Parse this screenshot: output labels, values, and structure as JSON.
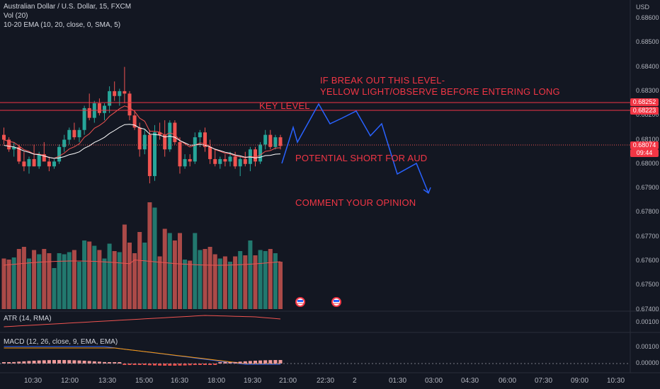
{
  "legend": {
    "symbol": "Australian Dollar / U.S. Dollar, 15, FXCM",
    "volume": "Vol (20)",
    "ema": "10-20 EMA (10, 20, close, 0, SMA, 5)",
    "atr": "ATR (14, RMA)",
    "macd": "MACD (12, 26, close, 9, EMA, EMA)"
  },
  "annotations": {
    "breakout_line1": "IF BREAK OUT THIS LEVEL-",
    "breakout_line2": "YELLOW LIGHT/OBSERVE BEFORE ENTERING LONG",
    "key_level": "KEY LEVEL",
    "potential_short": "POTENTIAL SHORT FOR AUD",
    "comment": "COMMENT YOUR OPINION"
  },
  "price_axis": {
    "currency": "USD",
    "labels": [
      "0.68600",
      "0.68500",
      "0.68400",
      "0.68300",
      "0.68200",
      "0.68100",
      "0.68000",
      "0.67900",
      "0.67800",
      "0.67700",
      "0.67600",
      "0.67500",
      "0.67400"
    ]
  },
  "price_badges": {
    "level_high": "0.68252",
    "level_low": "0.68223",
    "last_price": "0.68074",
    "countdown": "09:44"
  },
  "atr_axis": {
    "value": "0.00100"
  },
  "macd_axis": {
    "upper": "0.00100",
    "zero": "0.00000"
  },
  "time_axis": {
    "labels": [
      "10:30",
      "12:00",
      "13:30",
      "15:00",
      "16:30",
      "18:00",
      "19:30",
      "21:00",
      "22:30",
      "2",
      "01:30",
      "03:00",
      "04:30",
      "06:00",
      "07:30",
      "09:00",
      "10:30"
    ]
  },
  "colors": {
    "background": "#131722",
    "up": "#26a69a",
    "down": "#ef5350",
    "annotation": "#f23645",
    "projection": "#2962ff",
    "level": "#f23645",
    "ema_fast": "#ef5350",
    "ema_slow": "#ffffff",
    "macd_line": "#2962ff",
    "signal_line": "#ff9800"
  },
  "chart_data": {
    "type": "candlestick",
    "timeframe": "15",
    "key_level": [
      0.68223,
      0.68252
    ],
    "last_price": 0.68074,
    "candles": [
      [
        0.6812,
        0.6815,
        0.6808,
        0.681
      ],
      [
        0.681,
        0.6811,
        0.6805,
        0.6806
      ],
      [
        0.6806,
        0.6809,
        0.6803,
        0.6807
      ],
      [
        0.6807,
        0.6808,
        0.68,
        0.6801
      ],
      [
        0.6801,
        0.6805,
        0.6797,
        0.6799
      ],
      [
        0.6799,
        0.6803,
        0.6796,
        0.6802
      ],
      [
        0.6802,
        0.6808,
        0.6799,
        0.6799
      ],
      [
        0.6799,
        0.6805,
        0.6798,
        0.6804
      ],
      [
        0.6804,
        0.6809,
        0.6801,
        0.6801
      ],
      [
        0.6801,
        0.6803,
        0.6797,
        0.6799
      ],
      [
        0.6799,
        0.6802,
        0.6798,
        0.6801
      ],
      [
        0.6801,
        0.6808,
        0.68,
        0.6807
      ],
      [
        0.6807,
        0.6812,
        0.6805,
        0.681
      ],
      [
        0.681,
        0.6815,
        0.6808,
        0.6814
      ],
      [
        0.6814,
        0.6817,
        0.681,
        0.6811
      ],
      [
        0.6811,
        0.6815,
        0.6809,
        0.6814
      ],
      [
        0.6814,
        0.6824,
        0.6812,
        0.6823
      ],
      [
        0.6823,
        0.6829,
        0.6818,
        0.6819
      ],
      [
        0.6819,
        0.6826,
        0.6817,
        0.6825
      ],
      [
        0.6825,
        0.6827,
        0.682,
        0.6821
      ],
      [
        0.6821,
        0.6825,
        0.6818,
        0.6824
      ],
      [
        0.6824,
        0.6832,
        0.6821,
        0.683
      ],
      [
        0.683,
        0.6834,
        0.6826,
        0.6828
      ],
      [
        0.6828,
        0.6831,
        0.6824,
        0.683
      ],
      [
        0.683,
        0.684,
        0.6825,
        0.6829
      ],
      [
        0.6829,
        0.683,
        0.6818,
        0.682
      ],
      [
        0.682,
        0.6822,
        0.6814,
        0.6815
      ],
      [
        0.6815,
        0.6817,
        0.6803,
        0.6806
      ],
      [
        0.6806,
        0.6814,
        0.6804,
        0.6812
      ],
      [
        0.6812,
        0.6814,
        0.6792,
        0.6795
      ],
      [
        0.6795,
        0.6816,
        0.6793,
        0.6813
      ],
      [
        0.6813,
        0.6817,
        0.681,
        0.6812
      ],
      [
        0.6812,
        0.6818,
        0.6803,
        0.6806
      ],
      [
        0.6806,
        0.6818,
        0.6805,
        0.6817
      ],
      [
        0.6817,
        0.6818,
        0.6808,
        0.6809
      ],
      [
        0.6809,
        0.6811,
        0.6796,
        0.6799
      ],
      [
        0.6799,
        0.6804,
        0.6798,
        0.6802
      ],
      [
        0.6802,
        0.6804,
        0.6799,
        0.6801
      ],
      [
        0.6801,
        0.6813,
        0.68,
        0.6811
      ],
      [
        0.6811,
        0.6814,
        0.6807,
        0.6813
      ],
      [
        0.6813,
        0.6815,
        0.6805,
        0.6807
      ],
      [
        0.6807,
        0.681,
        0.68,
        0.6802
      ],
      [
        0.6802,
        0.6806,
        0.6799,
        0.68
      ],
      [
        0.68,
        0.6803,
        0.6798,
        0.6802
      ],
      [
        0.6802,
        0.6804,
        0.6799,
        0.6801
      ],
      [
        0.6801,
        0.6805,
        0.6799,
        0.6803
      ],
      [
        0.6803,
        0.6805,
        0.6798,
        0.6799
      ],
      [
        0.6799,
        0.6803,
        0.6795,
        0.6802
      ],
      [
        0.6802,
        0.6805,
        0.6799,
        0.68
      ],
      [
        0.68,
        0.6807,
        0.6797,
        0.6806
      ],
      [
        0.6806,
        0.6807,
        0.6799,
        0.6801
      ],
      [
        0.6801,
        0.6809,
        0.68,
        0.6808
      ],
      [
        0.6808,
        0.6814,
        0.6806,
        0.6812
      ],
      [
        0.6812,
        0.6814,
        0.6806,
        0.6807
      ],
      [
        0.6807,
        0.6812,
        0.6806,
        0.6811
      ],
      [
        0.6811,
        0.6812,
        0.6806,
        0.68074
      ]
    ],
    "projection": [
      [
        0.68
      ],
      [
        0.6815
      ],
      [
        0.6825
      ],
      [
        0.6818
      ],
      [
        0.6821
      ],
      [
        0.6818
      ],
      [
        0.6823
      ],
      [
        0.6813
      ],
      [
        0.6816
      ],
      [
        0.6796
      ],
      [
        0.6801
      ],
      [
        0.6788
      ]
    ]
  }
}
